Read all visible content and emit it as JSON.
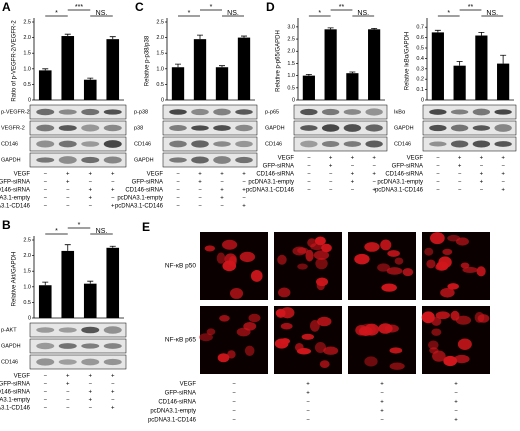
{
  "chart_data": [
    {
      "type": "bar",
      "panel": "A",
      "ylabel": "Ratio of p-VEGFR-2/VEGFR-2",
      "color": "#000000",
      "values": [
        0.95,
        2.05,
        0.65,
        1.95
      ],
      "errors": [
        0.05,
        0.06,
        0.05,
        0.08
      ],
      "ylim": [
        0,
        2.5
      ],
      "yticks": [
        0,
        0.5,
        {
          "value": 1,
          "label": "1.0"
        },
        1.5,
        {
          "value": 2,
          "label": "2.0"
        },
        2.5
      ],
      "annotations": [
        "*",
        "***",
        "NS."
      ],
      "blots": [
        "p-VEGFR-2",
        "VEGFR-2",
        "CD146",
        "GAPDH"
      ]
    },
    {
      "type": "bar",
      "panel": "C",
      "ylabel": "Relative p-p38/p38",
      "color": "#000000",
      "values": [
        1.05,
        1.95,
        1.05,
        2.0
      ],
      "errors": [
        0.1,
        0.13,
        0.05,
        0.05
      ],
      "ylim": [
        0,
        2.5
      ],
      "yticks": [
        0,
        0.5,
        {
          "value": 1,
          "label": "1.0"
        },
        1.5,
        {
          "value": 2,
          "label": "2.0"
        },
        2.5
      ],
      "annotations": [
        "*",
        "*",
        "NS."
      ],
      "blots": [
        "p-p38",
        "p38",
        "CD146",
        "GAPDH"
      ]
    },
    {
      "type": "bar",
      "panel": "D",
      "ylabel": "Relative p-p65/GAPDH",
      "color": "#000000",
      "values": [
        1.0,
        2.9,
        1.1,
        2.9
      ],
      "errors": [
        0.05,
        0.06,
        0.05,
        0.04
      ],
      "ylim": [
        0,
        3.2
      ],
      "yticks": [
        0,
        0.5,
        {
          "value": 1,
          "label": "1.0"
        },
        1.5,
        {
          "value": 2,
          "label": "2.0"
        },
        2.5,
        {
          "value": 3,
          "label": "3.0"
        }
      ],
      "annotations": [
        "*",
        "**",
        "NS."
      ],
      "blots": [
        "p-p65",
        "GAPDH",
        "CD146"
      ]
    },
    {
      "type": "bar",
      "ylabel": "Relative IκBα/GAPDH",
      "color": "#000000",
      "values": [
        0.65,
        0.33,
        0.62,
        0.35
      ],
      "errors": [
        0.02,
        0.04,
        0.03,
        0.08
      ],
      "ylim": [
        0,
        0.75
      ],
      "yticks": [
        0,
        0.1,
        0.2,
        0.3,
        0.4,
        0.5,
        0.6,
        0.7
      ],
      "annotations": [
        "*",
        "**",
        "NS."
      ],
      "blots": [
        "IκBα",
        "GAPDH",
        "CD146"
      ]
    },
    {
      "type": "bar",
      "panel": "B",
      "ylabel": "Relative Akt/GAPDH",
      "color": "#000000",
      "values": [
        1.05,
        2.15,
        1.1,
        2.25
      ],
      "errors": [
        0.1,
        0.2,
        0.08,
        0.05
      ],
      "ylim": [
        0,
        2.5
      ],
      "yticks": [
        0,
        0.5,
        {
          "value": 1,
          "label": "1.0"
        },
        1.5,
        {
          "value": 2,
          "label": "2.0"
        },
        2.5
      ],
      "annotations": [
        "*",
        "*",
        "NS."
      ],
      "blots": [
        "p-AKT",
        "GAPDH",
        "CD146"
      ]
    }
  ],
  "conditions": {
    "labels": [
      "VEGF",
      "GFP-siRNA",
      "CD146-siRNA",
      "pcDNA3.1-empty",
      "pcDNA3.1-CD146"
    ],
    "signs": [
      [
        "−",
        "+",
        "+",
        "+"
      ],
      [
        "−",
        "+",
        "−",
        "−"
      ],
      [
        "−",
        "−",
        "+",
        "+"
      ],
      [
        "−",
        "−",
        "+",
        "−"
      ],
      [
        "−",
        "−",
        "−",
        "+"
      ]
    ]
  },
  "panel_e": {
    "panel": "E",
    "rows": [
      "NF-κB p50",
      "NF-κB p65"
    ]
  }
}
